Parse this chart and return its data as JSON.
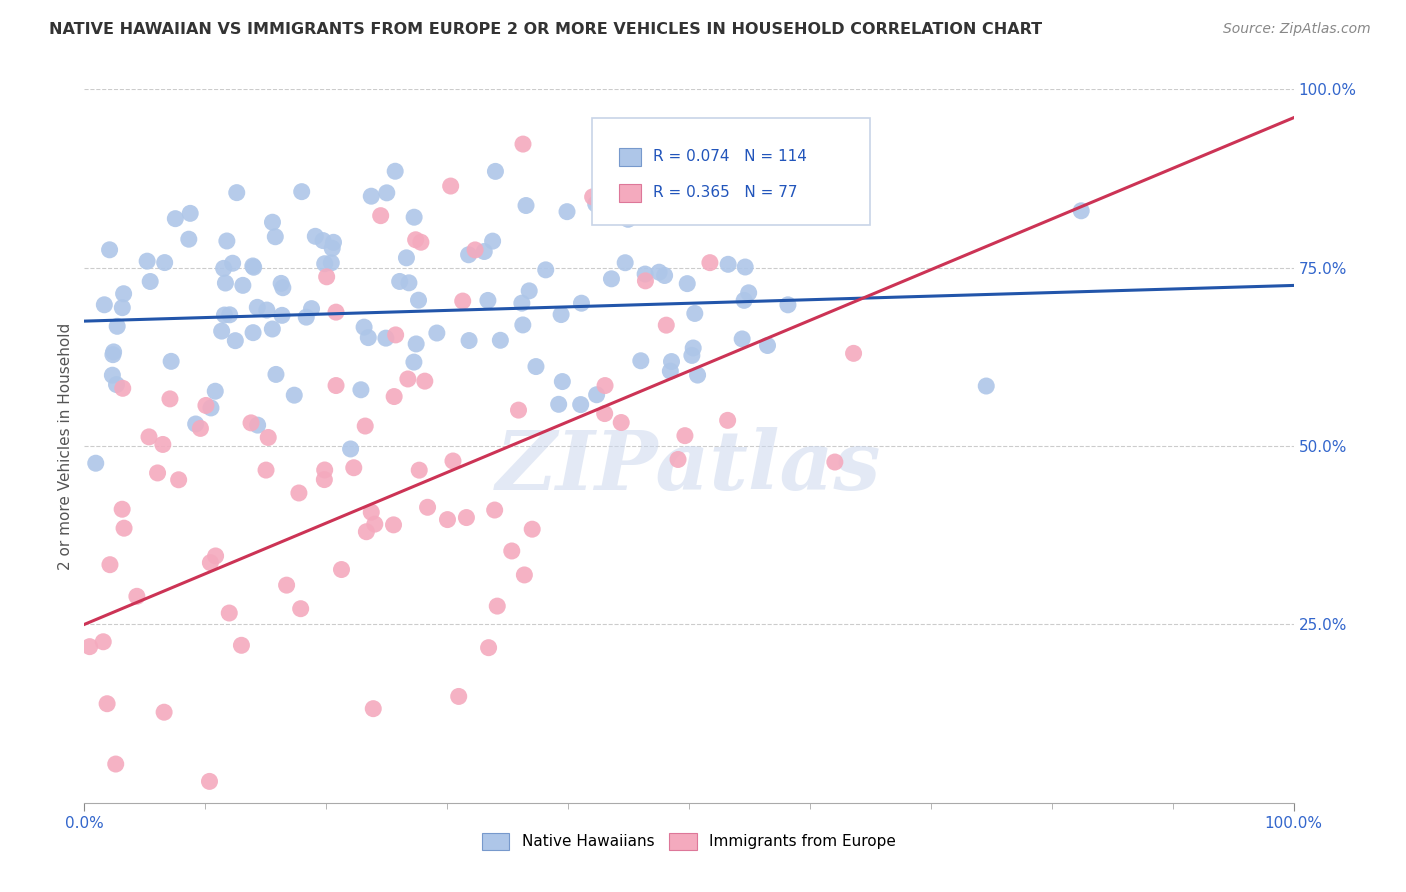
{
  "title": "NATIVE HAWAIIAN VS IMMIGRANTS FROM EUROPE 2 OR MORE VEHICLES IN HOUSEHOLD CORRELATION CHART",
  "source": "Source: ZipAtlas.com",
  "ylabel": "2 or more Vehicles in Household",
  "xlim": [
    0.0,
    1.0
  ],
  "ylim": [
    0.0,
    1.0
  ],
  "legend_blue_label": "Native Hawaiians",
  "legend_pink_label": "Immigrants from Europe",
  "R_blue": 0.074,
  "N_blue": 114,
  "R_pink": 0.365,
  "N_pink": 77,
  "blue_color": "#aec6e8",
  "pink_color": "#f4aabe",
  "blue_line_color": "#2255aa",
  "pink_line_color": "#cc3355",
  "title_color": "#333333",
  "source_color": "#888888",
  "stat_color": "#2255bb",
  "background_color": "#ffffff",
  "watermark_text": "ZIPatlas",
  "blue_line_x0": 0.0,
  "blue_line_y0": 0.675,
  "blue_line_x1": 1.0,
  "blue_line_y1": 0.725,
  "pink_line_x0": 0.0,
  "pink_line_y0": 0.25,
  "pink_line_x1": 1.0,
  "pink_line_y1": 0.96
}
